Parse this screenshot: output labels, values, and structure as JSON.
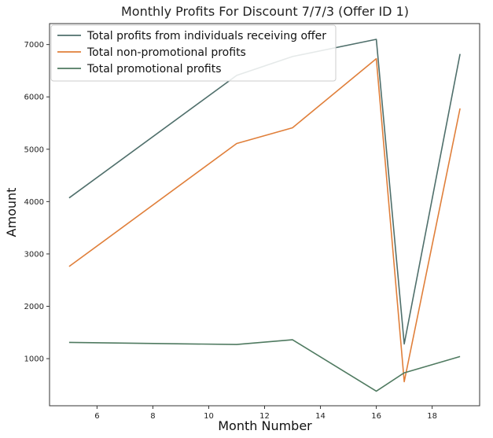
{
  "chart_data": {
    "type": "line",
    "title": "Monthly Profits For Discount 7/7/3 (Offer ID 1)",
    "xlabel": "Month Number",
    "ylabel": "Amount",
    "xlim": [
      4.3,
      19.7
    ],
    "ylim": [
      100,
      7400
    ],
    "xticks": [
      6,
      8,
      10,
      12,
      14,
      16,
      18
    ],
    "yticks": [
      1000,
      2000,
      3000,
      4000,
      5000,
      6000,
      7000
    ],
    "legend_position": "top-left",
    "grid": false,
    "series": [
      {
        "name": "Total profits from individuals receiving offer",
        "color": "#4f6f6b",
        "x": [
          5,
          11,
          13,
          16,
          17,
          19
        ],
        "y": [
          4070,
          6410,
          6770,
          7100,
          1280,
          6820
        ]
      },
      {
        "name": "Total non-promotional profits",
        "color": "#e07f3a",
        "x": [
          5,
          11,
          13,
          16,
          17,
          19
        ],
        "y": [
          2760,
          5110,
          5410,
          6730,
          560,
          5780
        ]
      },
      {
        "name": "Total promotional profits",
        "color": "#4f7a60",
        "x": [
          5,
          11,
          13,
          16,
          17,
          19
        ],
        "y": [
          1310,
          1270,
          1360,
          380,
          730,
          1040
        ]
      }
    ]
  }
}
